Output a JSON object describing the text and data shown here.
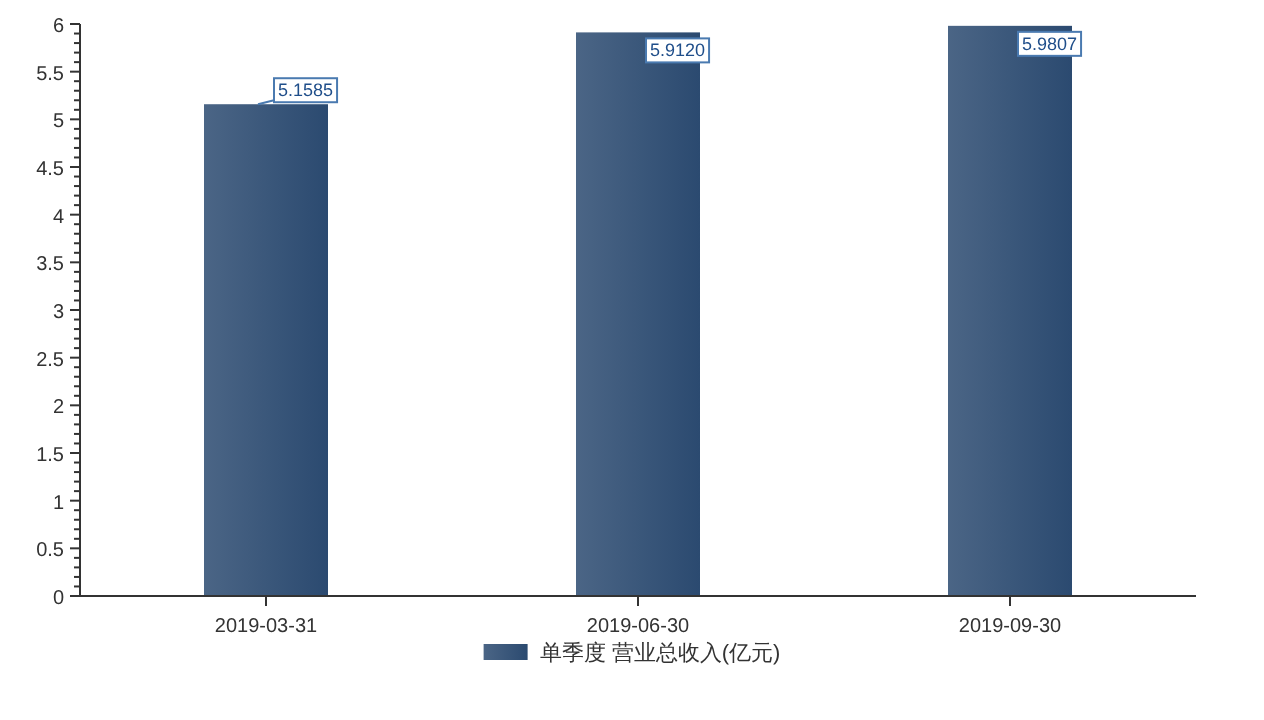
{
  "chart_data": {
    "type": "bar",
    "categories": [
      "2019-03-31",
      "2019-06-30",
      "2019-09-30"
    ],
    "series": [
      {
        "name": "单季度 营业总收入(亿元)",
        "color": "#2b4a70",
        "values": [
          5.1585,
          5.912,
          5.9807
        ]
      }
    ],
    "value_labels": [
      "5.1585",
      "5.9120",
      "5.9807"
    ],
    "ylim": [
      0,
      6
    ],
    "yticks": [
      0,
      0.5,
      1,
      1.5,
      2,
      2.5,
      3,
      3.5,
      4,
      4.5,
      5,
      5.5,
      6
    ],
    "legend": "bottom",
    "grid": false
  }
}
